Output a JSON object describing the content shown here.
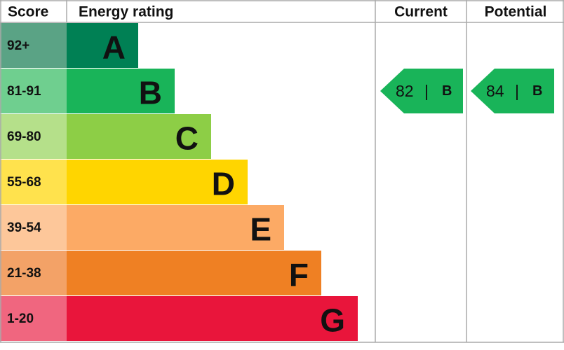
{
  "header": {
    "score": "Score",
    "rating": "Energy rating",
    "current": "Current",
    "potential": "Potential"
  },
  "bands": [
    {
      "score": "92+",
      "letter": "A"
    },
    {
      "score": "81-91",
      "letter": "B"
    },
    {
      "score": "69-80",
      "letter": "C"
    },
    {
      "score": "55-68",
      "letter": "D"
    },
    {
      "score": "39-54",
      "letter": "E"
    },
    {
      "score": "21-38",
      "letter": "F"
    },
    {
      "score": "1-20",
      "letter": "G"
    }
  ],
  "current": {
    "score": 82,
    "separator": "|",
    "band": "B"
  },
  "potential": {
    "score": 84,
    "separator": "|",
    "band": "B"
  }
}
